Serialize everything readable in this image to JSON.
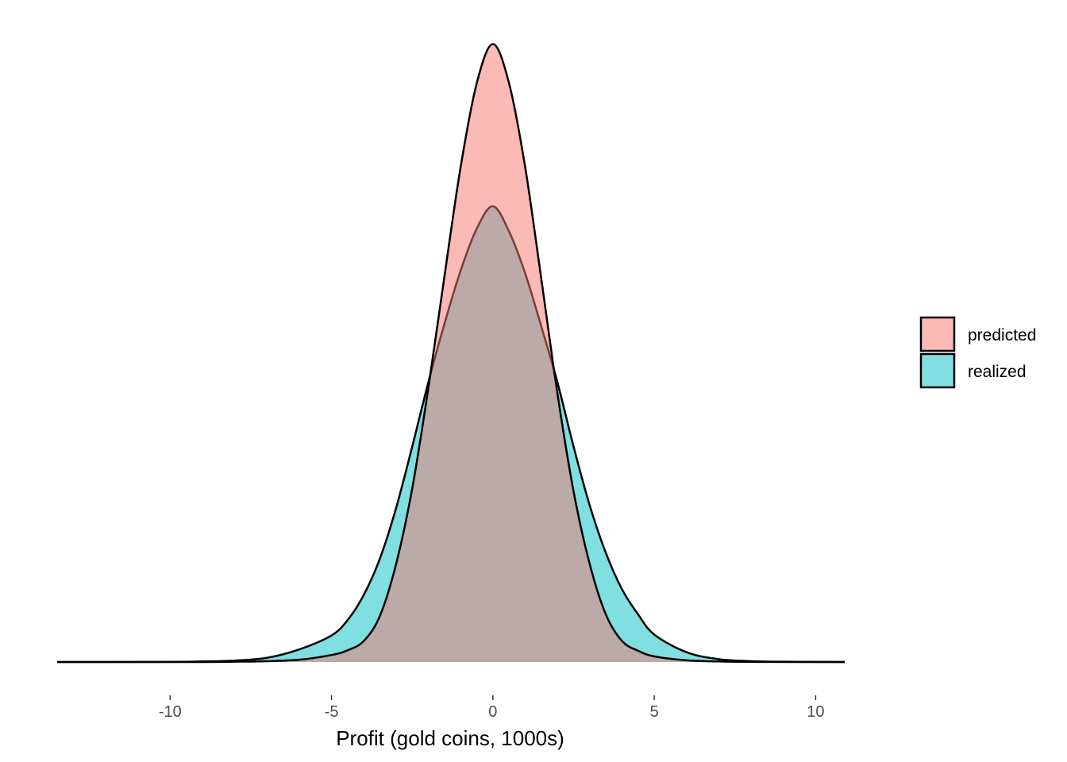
{
  "chart_data": {
    "type": "area",
    "title": "",
    "xlabel": "Profit (gold coins, 1000s)",
    "ylabel": "",
    "xlim": [
      -13.5,
      10.9
    ],
    "ylim": [
      0,
      0.222
    ],
    "x_ticks": [
      -10,
      -5,
      0,
      5,
      10
    ],
    "x_tick_labels": [
      "-10",
      "-5",
      "0",
      "5",
      "10"
    ],
    "grid": false,
    "legend": "right",
    "series": [
      {
        "name": "predicted",
        "color": "#F8766D",
        "x": [
          -13.5,
          -9,
          -8,
          -7,
          -6,
          -5,
          -4.5,
          -4,
          -3.5,
          -3,
          -2.5,
          -2,
          -1.5,
          -1,
          -0.5,
          0,
          0.5,
          1,
          1.5,
          2,
          2.5,
          3,
          3.5,
          4,
          4.5,
          5,
          6,
          7,
          8,
          10.9
        ],
        "y": [
          0,
          0,
          0.0001,
          0.0003,
          0.0008,
          0.0025,
          0.0042,
          0.0075,
          0.0165,
          0.035,
          0.062,
          0.098,
          0.138,
          0.177,
          0.207,
          0.221,
          0.207,
          0.177,
          0.137,
          0.096,
          0.061,
          0.035,
          0.017,
          0.0075,
          0.004,
          0.002,
          0.0006,
          0.0002,
          5e-05,
          0
        ]
      },
      {
        "name": "realized",
        "color": "#00BFC4",
        "x": [
          -13.5,
          -10,
          -9,
          -8,
          -7,
          -6,
          -5,
          -4.5,
          -4,
          -3.5,
          -3,
          -2.5,
          -2,
          -1.5,
          -1,
          -0.5,
          0,
          0.5,
          1,
          1.5,
          2,
          2.5,
          3,
          3.5,
          4,
          4.5,
          5,
          6,
          7,
          8,
          9,
          10.9
        ],
        "y": [
          0,
          5e-05,
          0.0002,
          0.0005,
          0.0015,
          0.0045,
          0.0095,
          0.015,
          0.024,
          0.037,
          0.055,
          0.077,
          0.1,
          0.121,
          0.14,
          0.155,
          0.163,
          0.154,
          0.139,
          0.12,
          0.1,
          0.077,
          0.056,
          0.039,
          0.026,
          0.017,
          0.0098,
          0.0035,
          0.001,
          0.0003,
          0.0001,
          0
        ]
      }
    ]
  }
}
